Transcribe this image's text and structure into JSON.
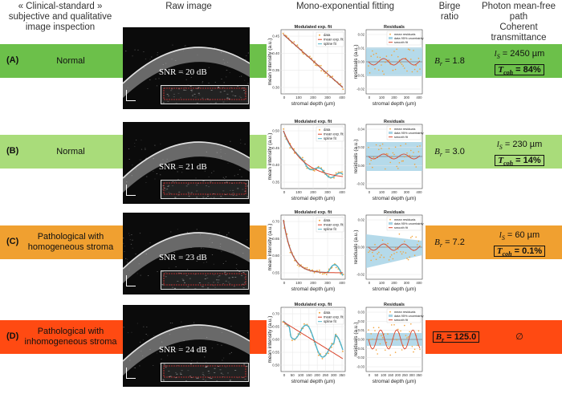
{
  "headers": {
    "col1_line1": "« Clinical-standard »",
    "col1_line2": "subjective and qualitative",
    "col1_line3": "image inspection",
    "col2": "Raw image",
    "col3": "Mono-exponential fitting",
    "col4_line1": "Birge",
    "col4_line2": "ratio",
    "col5_line1": "Photon mean-free path",
    "col5_line2": "Coherent transmittance"
  },
  "colors": {
    "normal_dark": "#6cc04a",
    "normal_light": "#a9dc7a",
    "patho_homog": "#f0a030",
    "patho_inhomog": "#ff4a12",
    "mean_fit": "#d9452b",
    "spline": "#4fb3c8",
    "data_pts": "#f2a33a",
    "band": "#a8d4e6"
  },
  "cases": [
    {
      "id": "(A)",
      "text_line1": "Normal",
      "text_line2": "",
      "snr": "SNR = 20 dB",
      "birge": "B",
      "birge_sub": "r",
      "birge_val": " = 1.8",
      "ls_val": " = 2450 µm",
      "tcoh_val": " = 84%",
      "fit_title": "Modulated exp. fit",
      "res_title": "Residuals",
      "legend_fit": [
        "data",
        "mean exp. fit",
        "spline fit"
      ],
      "legend_res": [
        "mean residuals",
        "data 95% uncertainty",
        "smooth fit"
      ],
      "fit_yticks": [
        "0.45",
        "0.40",
        "0.35",
        "0.30"
      ],
      "fit_xticks": [
        "0",
        "100",
        "200",
        "300",
        "400"
      ],
      "res_yticks": [
        "0.02",
        "0.01",
        "0.00",
        "-0.01",
        "-0.02"
      ],
      "res_xticks": [
        "0",
        "100",
        "200",
        "300",
        "400"
      ]
    },
    {
      "id": "(B)",
      "text_line1": "Normal",
      "text_line2": "",
      "snr": "SNR = 21 dB",
      "birge": "B",
      "birge_sub": "r",
      "birge_val": " = 3.0",
      "ls_val": " = 230 µm",
      "tcoh_val": " = 14%",
      "fit_title": "Modulated exp. fit",
      "res_title": "Residuals",
      "legend_fit": [
        "data",
        "mean exp. fit",
        "spline fit"
      ],
      "legend_res": [
        "mean residuals",
        "data 95% uncertainty",
        "smooth fit"
      ],
      "fit_yticks": [
        "0.50",
        "0.45",
        "0.40",
        "0.35"
      ],
      "fit_xticks": [
        "0",
        "100",
        "200",
        "300",
        "400"
      ],
      "res_yticks": [
        "0.04",
        "0.02",
        "0.00",
        "-0.02"
      ],
      "res_xticks": [
        "0",
        "100",
        "200",
        "300",
        "400"
      ]
    },
    {
      "id": "(C)",
      "text_line1": "Pathological with",
      "text_line2": "homogeneous stroma",
      "snr": "SNR = 23 dB",
      "birge": "B",
      "birge_sub": "r",
      "birge_val": " = 7.2",
      "ls_val": " = 60 µm",
      "tcoh_val": " = 0.1%",
      "fit_title": "Modulated exp. fit",
      "res_title": "Residuals",
      "legend_fit": [
        "data",
        "mean exp. fit",
        "spline fit"
      ],
      "legend_res": [
        "mean residuals",
        "data 95% uncertainty",
        "smooth fit"
      ],
      "fit_yticks": [
        "0.70",
        "0.65",
        "0.60",
        "0.55"
      ],
      "fit_xticks": [
        "0",
        "100",
        "200",
        "300",
        "400"
      ],
      "res_yticks": [
        "0.02",
        "0.00",
        "-0.02"
      ],
      "res_xticks": [
        "0",
        "100",
        "200",
        "300",
        "400"
      ]
    },
    {
      "id": "(D)",
      "text_line1": "Pathological with",
      "text_line2": "inhomogeneous stroma",
      "snr": "SNR = 24 dB",
      "birge": "B",
      "birge_sub": "r",
      "birge_val": " = 125.0",
      "ls_val": "",
      "tcoh_val": "",
      "empty_symbol": "∅",
      "fit_title": "Modulated exp. fit",
      "res_title": "Residuals",
      "legend_fit": [
        "data",
        "mean exp. fit",
        "spline fit"
      ],
      "legend_res": [
        "mean residuals",
        "data 95% uncertainty",
        "smooth fit"
      ],
      "fit_yticks": [
        "0.70",
        "0.65",
        "0.60",
        "0.55",
        "0.50"
      ],
      "fit_xticks": [
        "0",
        "50",
        "100",
        "150",
        "200",
        "250",
        "300",
        "350"
      ],
      "res_yticks": [
        "0.03",
        "0.02",
        "0.01",
        "0.00",
        "-0.01",
        "-0.02",
        "-0.03"
      ],
      "res_xticks": [
        "0",
        "50",
        "100",
        "150",
        "200",
        "250",
        "300",
        "350"
      ]
    }
  ],
  "axis": {
    "fit_ylabel": "mean intensity (a.u.)",
    "fit_xlabel": "stromal depth (µm)",
    "res_ylabel": "residuals (a.u.)",
    "res_xlabel": "stromal depth (µm)"
  },
  "ls_symbol": "l",
  "ls_sub": "S",
  "tcoh_symbol": "T",
  "tcoh_sub": "coh"
}
